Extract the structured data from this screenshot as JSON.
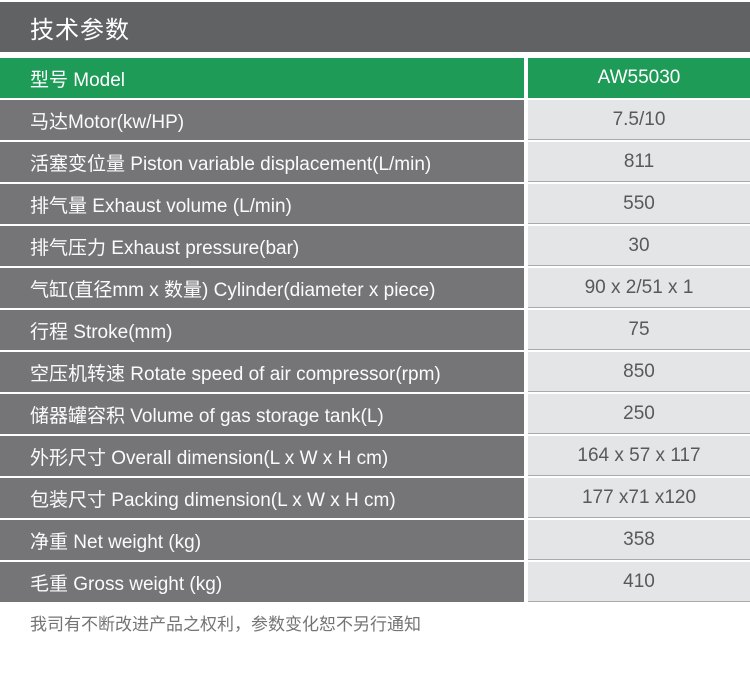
{
  "header": {
    "title": "技术参数"
  },
  "table": {
    "model_row": {
      "label": "型号 Model",
      "value": "AW55030"
    },
    "rows": [
      {
        "label": "马达Motor(kw/HP)",
        "value": "7.5/10"
      },
      {
        "label": "活塞变位量 Piston variable displacement(L/min)",
        "value": "811"
      },
      {
        "label": "排气量 Exhaust volume (L/min)",
        "value": "550"
      },
      {
        "label": "排气压力 Exhaust pressure(bar)",
        "value": "30"
      },
      {
        "label": "气缸(直径mm x 数量) Cylinder(diameter x piece)",
        "value": "90 x 2/51 x 1"
      },
      {
        "label": "行程 Stroke(mm)",
        "value": "75"
      },
      {
        "label": "空压机转速 Rotate speed of air compressor(rpm)",
        "value": "850"
      },
      {
        "label": "储器罐容积 Volume of gas storage tank(L)",
        "value": "250"
      },
      {
        "label": "外形尺寸 Overall dimension(L x W x H cm)",
        "value": "164 x 57 x 117"
      },
      {
        "label": "包装尺寸 Packing dimension(L x W x H cm)",
        "value": "177 x71 x120"
      },
      {
        "label": "净重 Net weight (kg)",
        "value": "358"
      },
      {
        "label": "毛重 Gross weight (kg)",
        "value": "410"
      }
    ]
  },
  "footer": {
    "note": "我司有不断改进产品之权利，参数变化恕不另行通知"
  },
  "theme": {
    "green": "#1E9B57",
    "titlebar_gray": "#616264",
    "label_gray": "#757578",
    "value_bg": "#E4E5E6",
    "value_text": "#58595B",
    "note_text": "#737476"
  }
}
